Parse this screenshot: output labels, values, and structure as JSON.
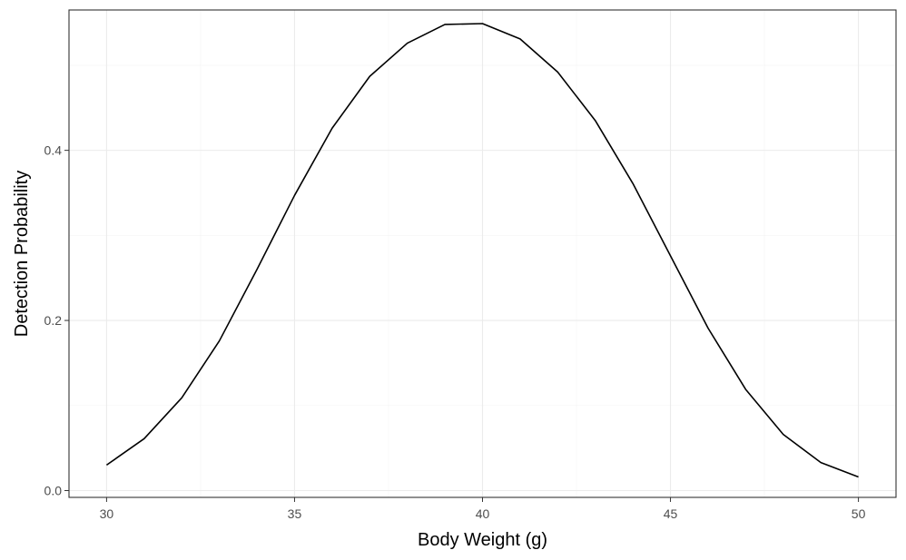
{
  "chart_data": {
    "type": "line",
    "title": "",
    "xlabel": "Body Weight (g)",
    "ylabel": "Detection Probability",
    "xlim": [
      29,
      51
    ],
    "ylim": [
      -0.008,
      0.565
    ],
    "x_ticks": [
      30,
      35,
      40,
      45,
      50
    ],
    "x_tick_labels": [
      "30",
      "35",
      "40",
      "45",
      "50"
    ],
    "y_ticks": [
      0.0,
      0.2,
      0.4
    ],
    "y_tick_labels": [
      "0.0",
      "0.2",
      "0.4"
    ],
    "grid": true,
    "legend": "none",
    "series": [
      {
        "color": "#000000",
        "x": [
          30,
          31,
          32,
          33,
          34,
          35,
          36,
          37,
          38,
          39,
          40,
          41,
          42,
          43,
          44,
          45,
          46,
          47,
          48,
          49,
          50
        ],
        "y": [
          0.03,
          0.061,
          0.109,
          0.176,
          0.26,
          0.347,
          0.426,
          0.487,
          0.526,
          0.548,
          0.549,
          0.531,
          0.492,
          0.435,
          0.361,
          0.276,
          0.191,
          0.119,
          0.066,
          0.033,
          0.016
        ]
      }
    ]
  }
}
